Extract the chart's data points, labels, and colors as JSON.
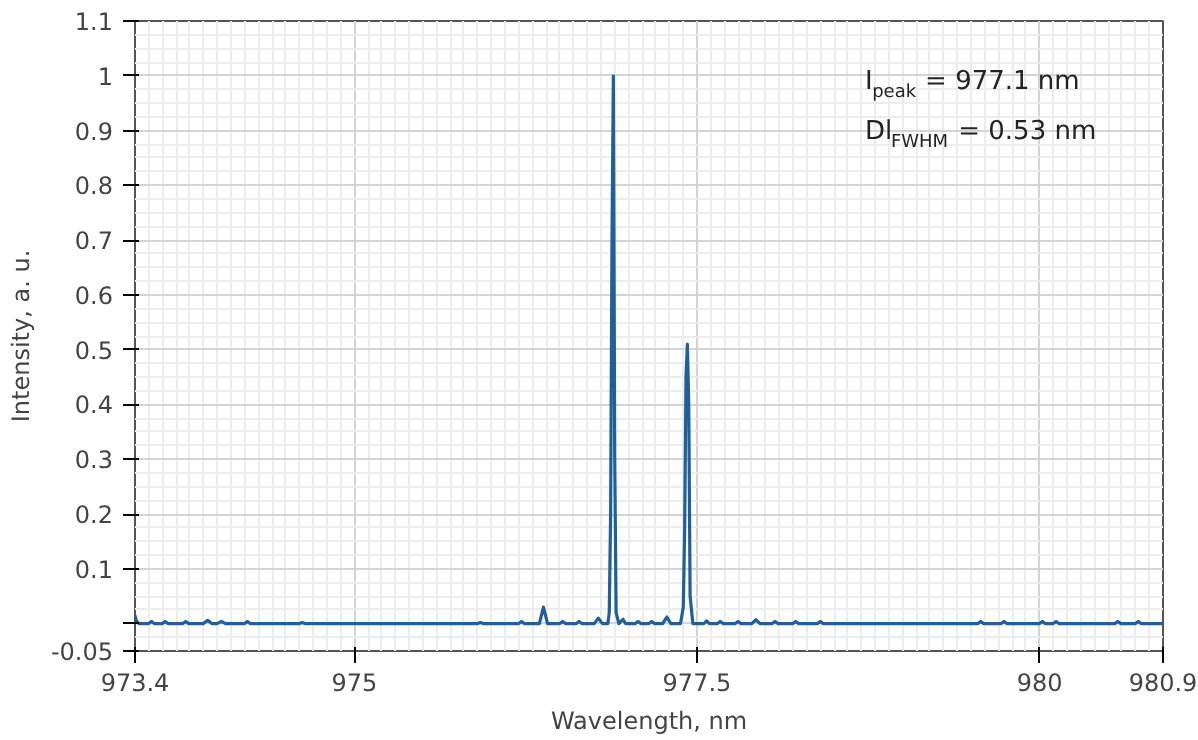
{
  "chart_data": {
    "type": "line",
    "xlabel": "Wavelength, nm",
    "ylabel": "Intensity, a. u.",
    "annotations": [
      "I$_{peak}$ = 977.1 nm",
      "Dl$_{FWHM}$ = 0.53 nm"
    ],
    "xlim": [
      973.4,
      980.9
    ],
    "ylim": [
      -0.05,
      1.1
    ],
    "xticks": [
      973.4,
      975,
      977.5,
      980,
      980.9
    ],
    "yticks": [
      -0.05,
      {
        "value": 0,
        "label": null
      },
      0.1,
      0.2,
      0.3,
      0.4,
      0.5,
      0.6,
      0.7,
      0.8,
      0.9,
      1,
      1.1
    ],
    "grid": true,
    "marker": "none",
    "line_style": "solid",
    "series": [
      {
        "color": "#1f5f9a",
        "x": [
          973.4,
          973.41,
          973.43,
          973.5,
          973.52,
          973.54,
          973.6,
          973.62,
          973.64,
          973.75,
          973.77,
          973.79,
          973.9,
          973.93,
          973.96,
          974.0,
          974.03,
          974.06,
          974.2,
          974.22,
          974.24,
          974.5,
          974.6,
          974.62,
          974.64,
          975.0,
          975.2,
          975.5,
          975.9,
          975.92,
          975.94,
          976.2,
          976.22,
          976.24,
          976.35,
          976.38,
          976.41,
          976.5,
          976.52,
          976.54,
          976.62,
          976.64,
          976.66,
          976.75,
          976.78,
          976.81,
          976.85,
          976.86,
          976.87,
          976.88,
          976.89,
          976.9,
          976.91,
          976.93,
          976.96,
          976.98,
          977.0,
          977.05,
          977.07,
          977.09,
          977.15,
          977.17,
          977.19,
          977.25,
          977.28,
          977.31,
          977.38,
          977.4,
          977.41,
          977.42,
          977.43,
          977.44,
          977.45,
          977.47,
          977.55,
          977.57,
          977.59,
          977.65,
          977.67,
          977.69,
          977.78,
          977.8,
          977.82,
          977.9,
          977.93,
          977.96,
          978.05,
          978.07,
          978.09,
          978.2,
          978.22,
          978.24,
          978.38,
          978.4,
          978.42,
          979.55,
          979.57,
          979.59,
          979.72,
          979.74,
          979.76,
          980.0,
          980.02,
          980.04,
          980.1,
          980.12,
          980.14,
          980.55,
          980.57,
          980.59,
          980.7,
          980.72,
          980.74,
          980.9
        ],
        "values": [
          0.015,
          0.005,
          0.0,
          0.0,
          0.004,
          0.0,
          0.0,
          0.004,
          0.0,
          0.0,
          0.004,
          0.0,
          0.0,
          0.006,
          0.0,
          0.0,
          0.004,
          0.0,
          0.0,
          0.004,
          0.0,
          0.0,
          0.0,
          0.002,
          0.0,
          0.0,
          0.0,
          0.0,
          0.0,
          0.002,
          0.0,
          0.0,
          0.004,
          0.0,
          0.0,
          0.03,
          0.0,
          0.0,
          0.004,
          0.0,
          0.0,
          0.004,
          0.0,
          0.0,
          0.01,
          0.0,
          0.0,
          0.02,
          0.2,
          0.7,
          1.0,
          0.3,
          0.02,
          0.0,
          0.008,
          0.0,
          0.0,
          0.0,
          0.004,
          0.0,
          0.0,
          0.004,
          0.0,
          0.0,
          0.012,
          0.0,
          0.0,
          0.03,
          0.17,
          0.45,
          0.51,
          0.4,
          0.05,
          0.0,
          0.0,
          0.005,
          0.0,
          0.0,
          0.004,
          0.0,
          0.0,
          0.004,
          0.0,
          0.0,
          0.007,
          0.0,
          0.0,
          0.004,
          0.0,
          0.0,
          0.004,
          0.0,
          0.0,
          0.004,
          0.0,
          0.0,
          0.004,
          0.0,
          0.0,
          0.004,
          0.0,
          0.0,
          0.004,
          0.0,
          0.0,
          0.004,
          0.0,
          0.0,
          0.004,
          0.0,
          0.0,
          0.004,
          0.0,
          0.0
        ]
      }
    ]
  }
}
